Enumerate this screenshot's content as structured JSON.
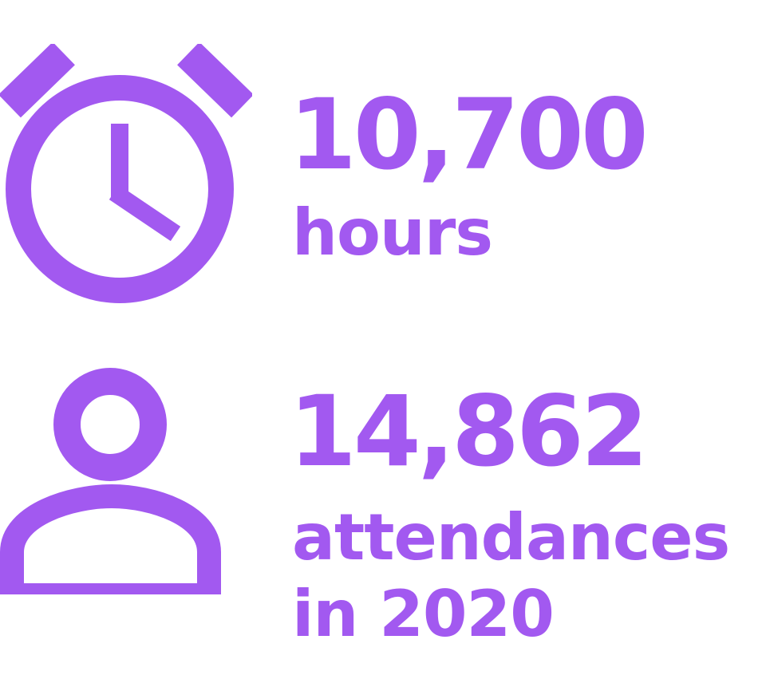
{
  "theme": {
    "accent": "#a259f0",
    "background": "#ffffff"
  },
  "stats": [
    {
      "icon": "alarm-clock-icon",
      "value": "10,700",
      "label": "hours"
    },
    {
      "icon": "person-icon",
      "value": "14,862",
      "label_line1": "attendances",
      "label_line2": "in 2020"
    }
  ]
}
